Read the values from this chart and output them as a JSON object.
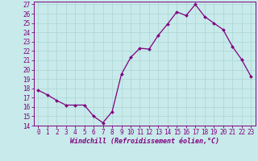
{
  "x": [
    0,
    1,
    2,
    3,
    4,
    5,
    6,
    7,
    8,
    9,
    10,
    11,
    12,
    13,
    14,
    15,
    16,
    17,
    18,
    19,
    20,
    21,
    22,
    23
  ],
  "y": [
    17.8,
    17.3,
    16.7,
    16.2,
    16.2,
    16.2,
    15.0,
    14.3,
    15.5,
    19.5,
    21.3,
    22.3,
    22.2,
    23.7,
    24.9,
    26.2,
    25.8,
    27.0,
    25.7,
    25.0,
    24.3,
    22.5,
    21.1,
    19.3
  ],
  "color": "#800080",
  "bg_color": "#c8eaea",
  "grid_color": "#b0d8d8",
  "xlabel": "Windchill (Refroidissement éolien,°C)",
  "ylim": [
    14,
    27
  ],
  "xlim": [
    -0.5,
    23.5
  ],
  "yticks": [
    14,
    15,
    16,
    17,
    18,
    19,
    20,
    21,
    22,
    23,
    24,
    25,
    26,
    27
  ],
  "xticks": [
    0,
    1,
    2,
    3,
    4,
    5,
    6,
    7,
    8,
    9,
    10,
    11,
    12,
    13,
    14,
    15,
    16,
    17,
    18,
    19,
    20,
    21,
    22,
    23
  ],
  "tick_fontsize": 5.5,
  "xlabel_fontsize": 6.0,
  "marker_size": 2.0,
  "line_width": 0.9
}
